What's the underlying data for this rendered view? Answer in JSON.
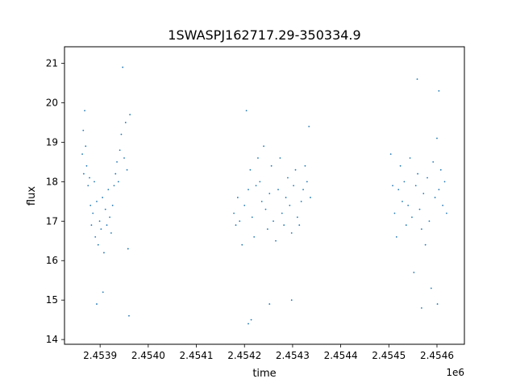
{
  "chart_data": {
    "type": "scatter",
    "title": "1SWASPJ162717.29-350334.9",
    "xlabel": "time",
    "ylabel": "flux",
    "x_offset_label": "1e6",
    "xlim": [
      2453826,
      2454657
    ],
    "ylim": [
      13.88,
      21.42
    ],
    "x_ticks": [
      2453900,
      2454000,
      2454100,
      2454200,
      2454300,
      2454400,
      2454500,
      2454600
    ],
    "x_tick_labels": [
      "2.4539",
      "2.4540",
      "2.4541",
      "2.4542",
      "2.4543",
      "2.4544",
      "2.4545",
      "2.4546"
    ],
    "y_ticks": [
      14,
      15,
      16,
      17,
      18,
      19,
      20,
      21
    ],
    "y_tick_labels": [
      "14",
      "15",
      "16",
      "17",
      "18",
      "19",
      "20",
      "21"
    ],
    "grid": false,
    "marker_color": "#1f77b4",
    "series": [
      {
        "points": [
          [
            2453863,
            18.7
          ],
          [
            2453865,
            19.3
          ],
          [
            2453866,
            18.2
          ],
          [
            2453868,
            19.8
          ],
          [
            2453870,
            18.9
          ],
          [
            2453872,
            18.4
          ],
          [
            2453875,
            17.9
          ],
          [
            2453878,
            18.1
          ],
          [
            2453880,
            17.4
          ],
          [
            2453882,
            16.9
          ],
          [
            2453885,
            17.2
          ],
          [
            2453888,
            18.0
          ],
          [
            2453890,
            16.6
          ],
          [
            2453893,
            17.5
          ],
          [
            2453896,
            16.4
          ],
          [
            2453899,
            17.0
          ],
          [
            2453902,
            16.8
          ],
          [
            2453905,
            17.6
          ],
          [
            2453908,
            16.2
          ],
          [
            2453911,
            17.3
          ],
          [
            2453914,
            16.9
          ],
          [
            2453917,
            17.8
          ],
          [
            2453920,
            17.1
          ],
          [
            2453923,
            16.7
          ],
          [
            2453926,
            17.4
          ],
          [
            2453929,
            17.9
          ],
          [
            2453932,
            18.2
          ],
          [
            2453935,
            18.5
          ],
          [
            2453938,
            18.0
          ],
          [
            2453941,
            18.8
          ],
          [
            2453944,
            19.2
          ],
          [
            2453947,
            20.9
          ],
          [
            2453950,
            18.6
          ],
          [
            2453953,
            19.5
          ],
          [
            2453956,
            18.3
          ],
          [
            2453958,
            16.3
          ],
          [
            2453960,
            14.6
          ],
          [
            2453962,
            19.7
          ],
          [
            2453906,
            15.2
          ],
          [
            2453893,
            14.9
          ],
          [
            2454178,
            17.2
          ],
          [
            2454182,
            16.9
          ],
          [
            2454186,
            17.6
          ],
          [
            2454190,
            17.0
          ],
          [
            2454195,
            16.4
          ],
          [
            2454200,
            17.4
          ],
          [
            2454204,
            19.8
          ],
          [
            2454208,
            17.8
          ],
          [
            2454212,
            18.3
          ],
          [
            2454216,
            17.1
          ],
          [
            2454220,
            16.6
          ],
          [
            2454224,
            17.9
          ],
          [
            2454228,
            18.6
          ],
          [
            2454232,
            18.0
          ],
          [
            2454236,
            17.5
          ],
          [
            2454240,
            18.9
          ],
          [
            2454244,
            17.3
          ],
          [
            2454248,
            16.8
          ],
          [
            2454252,
            17.7
          ],
          [
            2454256,
            18.4
          ],
          [
            2454260,
            17.0
          ],
          [
            2454265,
            16.5
          ],
          [
            2454270,
            17.8
          ],
          [
            2454274,
            18.6
          ],
          [
            2454278,
            17.2
          ],
          [
            2454282,
            16.9
          ],
          [
            2454286,
            17.6
          ],
          [
            2454290,
            18.1
          ],
          [
            2454294,
            17.4
          ],
          [
            2454298,
            16.7
          ],
          [
            2454302,
            17.9
          ],
          [
            2454306,
            18.3
          ],
          [
            2454310,
            17.1
          ],
          [
            2454314,
            16.9
          ],
          [
            2454318,
            17.5
          ],
          [
            2454322,
            17.8
          ],
          [
            2454326,
            18.4
          ],
          [
            2454330,
            18.0
          ],
          [
            2454334,
            19.4
          ],
          [
            2454337,
            17.6
          ],
          [
            2454208,
            14.4
          ],
          [
            2454252,
            14.9
          ],
          [
            2454214,
            14.5
          ],
          [
            2454298,
            15.0
          ],
          [
            2454504,
            18.7
          ],
          [
            2454508,
            17.9
          ],
          [
            2454512,
            17.2
          ],
          [
            2454516,
            16.6
          ],
          [
            2454520,
            17.8
          ],
          [
            2454524,
            18.4
          ],
          [
            2454528,
            17.5
          ],
          [
            2454532,
            18.0
          ],
          [
            2454536,
            16.9
          ],
          [
            2454540,
            17.4
          ],
          [
            2454544,
            18.6
          ],
          [
            2454548,
            17.1
          ],
          [
            2454552,
            15.7
          ],
          [
            2454556,
            17.9
          ],
          [
            2454560,
            18.2
          ],
          [
            2454564,
            17.3
          ],
          [
            2454568,
            16.8
          ],
          [
            2454572,
            17.7
          ],
          [
            2454576,
            16.4
          ],
          [
            2454580,
            18.1
          ],
          [
            2454584,
            17.0
          ],
          [
            2454588,
            15.3
          ],
          [
            2454592,
            18.5
          ],
          [
            2454596,
            17.6
          ],
          [
            2454600,
            19.1
          ],
          [
            2454604,
            17.8
          ],
          [
            2454608,
            18.3
          ],
          [
            2454612,
            17.4
          ],
          [
            2454616,
            18.0
          ],
          [
            2454620,
            17.2
          ],
          [
            2454559,
            20.6
          ],
          [
            2454604,
            20.3
          ],
          [
            2454568,
            14.8
          ],
          [
            2454601,
            14.9
          ]
        ]
      }
    ]
  }
}
